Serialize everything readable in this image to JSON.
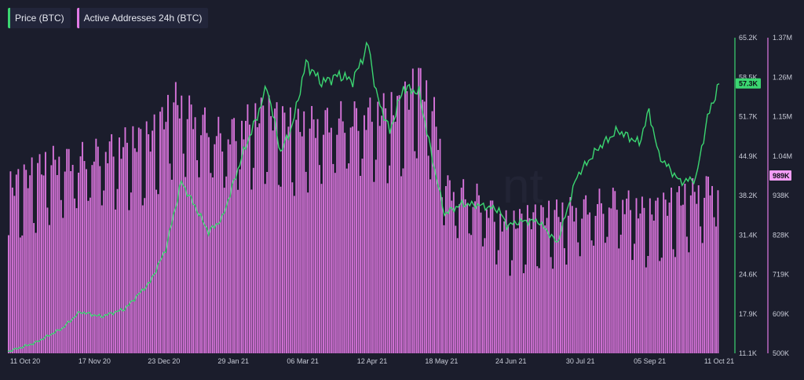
{
  "legend": {
    "price_label": "Price (BTC)",
    "addresses_label": "Active Addresses 24h (BTC)"
  },
  "colors": {
    "background": "#1b1d2c",
    "price": "#3bd671",
    "addresses": "#d874db",
    "addresses_badge": "#f29df5",
    "grid": "#24273a",
    "text": "#c9ccd8"
  },
  "watermark": "nt",
  "chart_data": {
    "type": "line+bar",
    "x_ticks": [
      "11 Oct 20",
      "17 Nov 20",
      "23 Dec 20",
      "29 Jan 21",
      "06 Mar 21",
      "12 Apr 21",
      "18 May 21",
      "24 Jun 21",
      "30 Jul 21",
      "05 Sep 21",
      "11 Oct 21"
    ],
    "price_axis": {
      "ticks": [
        "65.2K",
        "58.5K",
        "51.7K",
        "44.9K",
        "38.2K",
        "31.4K",
        "24.6K",
        "17.9K",
        "11.1K"
      ],
      "min": 11100,
      "max": 65200,
      "last_value_label": "57.3K"
    },
    "addresses_axis": {
      "ticks": [
        "1.37M",
        "1.26M",
        "1.15M",
        "1.04M",
        "938K",
        "828K",
        "719K",
        "609K",
        "500K"
      ],
      "min": 500000,
      "max": 1370000,
      "last_value_label": "989K"
    },
    "series": [
      {
        "name": "Price (BTC)",
        "type": "line",
        "x": [
          "2020-10-11",
          "2020-10-25",
          "2020-11-08",
          "2020-11-17",
          "2020-11-28",
          "2020-12-10",
          "2020-12-23",
          "2020-12-31",
          "2021-01-08",
          "2021-01-15",
          "2021-01-22",
          "2021-01-29",
          "2021-02-08",
          "2021-02-16",
          "2021-02-21",
          "2021-02-28",
          "2021-03-06",
          "2021-03-13",
          "2021-03-21",
          "2021-03-30",
          "2021-04-06",
          "2021-04-14",
          "2021-04-18",
          "2021-04-25",
          "2021-05-02",
          "2021-05-10",
          "2021-05-14",
          "2021-05-18",
          "2021-05-23",
          "2021-06-01",
          "2021-06-10",
          "2021-06-20",
          "2021-06-24",
          "2021-07-01",
          "2021-07-10",
          "2021-07-20",
          "2021-07-30",
          "2021-08-10",
          "2021-08-20",
          "2021-08-31",
          "2021-09-05",
          "2021-09-10",
          "2021-09-21",
          "2021-09-29",
          "2021-10-05",
          "2021-10-11"
        ],
        "values": [
          11400,
          12900,
          15400,
          18200,
          17400,
          18700,
          23300,
          28900,
          40500,
          36300,
          31900,
          34200,
          44700,
          51800,
          56900,
          45500,
          50200,
          60900,
          57500,
          58800,
          57800,
          64100,
          55600,
          49100,
          56700,
          55800,
          49200,
          42600,
          35000,
          36700,
          36500,
          35700,
          33000,
          33700,
          33800,
          30000,
          41500,
          46300,
          49300,
          47100,
          52700,
          45000,
          40500,
          41000,
          51500,
          57300
        ]
      },
      {
        "name": "Active Addresses 24h (BTC)",
        "type": "bar",
        "x": [
          "2020-10-11",
          "2020-11-01",
          "2020-11-17",
          "2020-12-10",
          "2020-12-23",
          "2021-01-05",
          "2021-01-29",
          "2021-02-20",
          "2021-03-06",
          "2021-04-01",
          "2021-04-12",
          "2021-04-30",
          "2021-05-10",
          "2021-05-18",
          "2021-05-25",
          "2021-06-10",
          "2021-06-24",
          "2021-07-10",
          "2021-07-30",
          "2021-08-20",
          "2021-09-05",
          "2021-09-21",
          "2021-10-05",
          "2021-10-11"
        ],
        "values": [
          960000,
          1030000,
          1040000,
          1080000,
          1100000,
          1200000,
          1100000,
          1170000,
          1130000,
          1150000,
          1160000,
          1180000,
          1260000,
          1160000,
          960000,
          930000,
          860000,
          880000,
          900000,
          930000,
          890000,
          930000,
          960000,
          989000
        ]
      }
    ]
  }
}
